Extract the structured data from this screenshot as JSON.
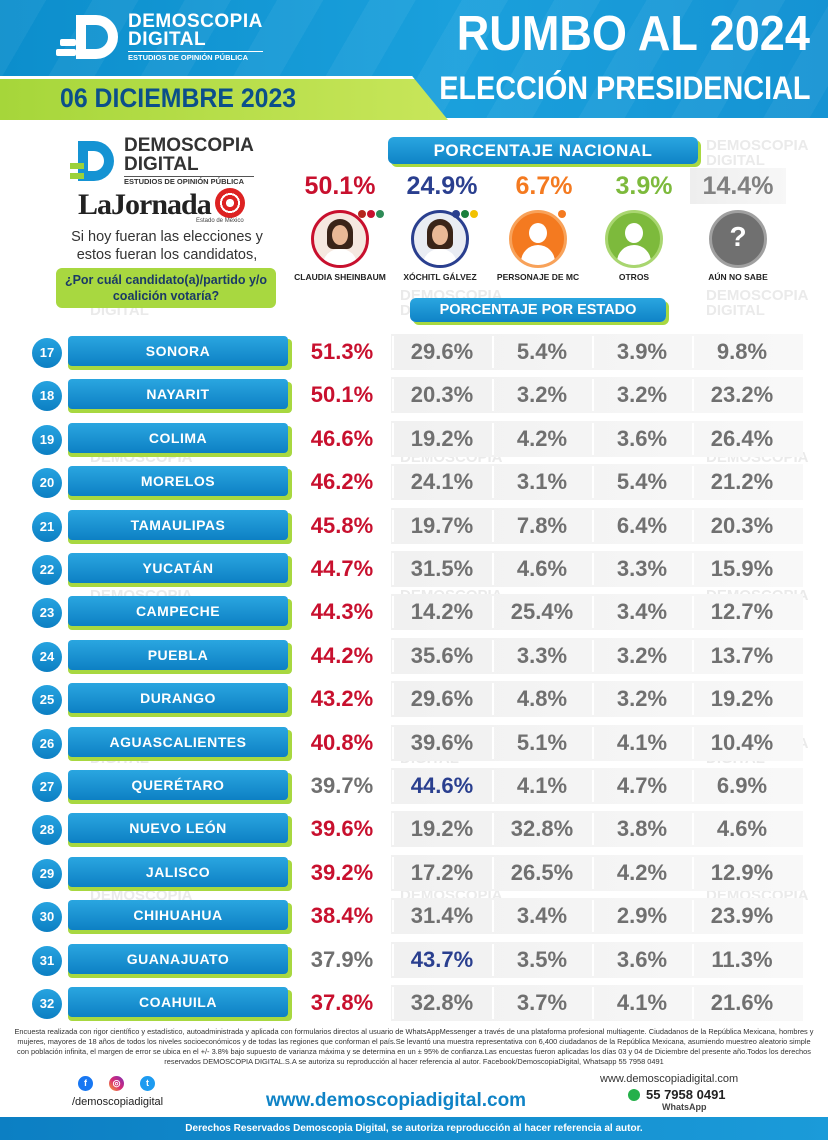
{
  "header": {
    "brand_line1": "DEMOSCOPIA",
    "brand_line2": "DIGITAL",
    "brand_tagline": "ESTUDIOS DE OPINIÓN PÚBLICA",
    "title": "RUMBO AL 2024",
    "subtitle": "ELECCIÓN PRESIDENCIAL",
    "date": "06 DICIEMBRE 2023"
  },
  "watermark_text_1": "DEMOSCOPIA",
  "watermark_text_2": "DIGITAL",
  "left": {
    "brand_line1": "DEMOSCOPIA",
    "brand_line2": "DIGITAL",
    "brand_tagline": "ESTUDIOS DE OPINIÓN PÚBLICA",
    "partner_name": "LaJornada",
    "partner_sub": "Estado de México",
    "question_intro": "Si hoy fueran las elecciones y estos fueran los candidatos,",
    "question": "¿Por cuál candidato(a)/partido y/o coalición votaría?"
  },
  "national": {
    "banner": "PORCENTAJE NACIONAL",
    "values": [
      "50.1%",
      "24.9%",
      "6.7%",
      "3.9%",
      "14.4%"
    ],
    "colors": [
      "#c8102e",
      "#2a3f8f",
      "#f47a20",
      "#7dba3c",
      "#808080"
    ]
  },
  "candidates": [
    {
      "name": "CLAUDIA SHEINBAUM",
      "icon": "candidate-photo"
    },
    {
      "name": "XÓCHITL GÁLVEZ",
      "icon": "candidate-photo"
    },
    {
      "name": "PERSONAJE DE MC",
      "icon": "person-icon"
    },
    {
      "name": "OTROS",
      "icon": "person-icon"
    },
    {
      "name": "AÚN NO SABE",
      "icon": "question-icon",
      "glyph": "?"
    }
  ],
  "state_banner": "PORCENTAJE POR ESTADO",
  "states": [
    {
      "n": "17",
      "name": "SONORA",
      "v": [
        "51.3%",
        "29.6%",
        "5.4%",
        "3.9%",
        "9.8%"
      ],
      "lead": 0
    },
    {
      "n": "18",
      "name": "NAYARIT",
      "v": [
        "50.1%",
        "20.3%",
        "3.2%",
        "3.2%",
        "23.2%"
      ],
      "lead": 0
    },
    {
      "n": "19",
      "name": "COLIMA",
      "v": [
        "46.6%",
        "19.2%",
        "4.2%",
        "3.6%",
        "26.4%"
      ],
      "lead": 0
    },
    {
      "n": "20",
      "name": "MORELOS",
      "v": [
        "46.2%",
        "24.1%",
        "3.1%",
        "5.4%",
        "21.2%"
      ],
      "lead": 0
    },
    {
      "n": "21",
      "name": "TAMAULIPAS",
      "v": [
        "45.8%",
        "19.7%",
        "7.8%",
        "6.4%",
        "20.3%"
      ],
      "lead": 0
    },
    {
      "n": "22",
      "name": "YUCATÁN",
      "v": [
        "44.7%",
        "31.5%",
        "4.6%",
        "3.3%",
        "15.9%"
      ],
      "lead": 0
    },
    {
      "n": "23",
      "name": "CAMPECHE",
      "v": [
        "44.3%",
        "14.2%",
        "25.4%",
        "3.4%",
        "12.7%"
      ],
      "lead": 0
    },
    {
      "n": "24",
      "name": "PUEBLA",
      "v": [
        "44.2%",
        "35.6%",
        "3.3%",
        "3.2%",
        "13.7%"
      ],
      "lead": 0
    },
    {
      "n": "25",
      "name": "DURANGO",
      "v": [
        "43.2%",
        "29.6%",
        "4.8%",
        "3.2%",
        "19.2%"
      ],
      "lead": 0
    },
    {
      "n": "26",
      "name": "AGUASCALIENTES",
      "v": [
        "40.8%",
        "39.6%",
        "5.1%",
        "4.1%",
        "10.4%"
      ],
      "lead": 0
    },
    {
      "n": "27",
      "name": "QUERÉTARO",
      "v": [
        "39.7%",
        "44.6%",
        "4.1%",
        "4.7%",
        "6.9%"
      ],
      "lead": 1
    },
    {
      "n": "28",
      "name": "NUEVO LEÓN",
      "v": [
        "39.6%",
        "19.2%",
        "32.8%",
        "3.8%",
        "4.6%"
      ],
      "lead": 0
    },
    {
      "n": "29",
      "name": "JALISCO",
      "v": [
        "39.2%",
        "17.2%",
        "26.5%",
        "4.2%",
        "12.9%"
      ],
      "lead": 0
    },
    {
      "n": "30",
      "name": "CHIHUAHUA",
      "v": [
        "38.4%",
        "31.4%",
        "3.4%",
        "2.9%",
        "23.9%"
      ],
      "lead": 0
    },
    {
      "n": "31",
      "name": "GUANAJUATO",
      "v": [
        "37.9%",
        "43.7%",
        "3.5%",
        "3.6%",
        "11.3%"
      ],
      "lead": 1
    },
    {
      "n": "32",
      "name": "COAHUILA",
      "v": [
        "37.8%",
        "32.8%",
        "3.7%",
        "4.1%",
        "21.6%"
      ],
      "lead": 0
    }
  ],
  "lead_colors": [
    "#c8102e",
    "#2a3f8f"
  ],
  "default_color": "#707070",
  "footer": {
    "note": "Encuesta realizada con rigor científico y estadístico, autoadministrada y aplicada con formularios directos al usuario de WhatsAppMessenger a través de una plataforma profesional multiagente. Ciudadanos de la República Mexicana, hombres y mujeres, mayores de 18 años de todos los niveles socioeconómicos y de todas las regiones que conforman el país.Se levantó una muestra representativa con 6,400 ciudadanos de la República Mexicana, asumiendo muestreo aleatorio simple con población infinita, el margen de error se ubica en el +/- 3.8% bajo supuesto de varianza máxima y se determina en un ± 95% de confianza.Las encuestas fueron aplicadas los días 03 y 04 de Diciembre del presente año.Todos los derechos reservados DEMOSCOPIA DIGITAL.S.A se autoriza su reproducción al hacer referencia al autor. Facebook/DemoscopiaDigital, Whatsapp 55 7958 0491",
    "handle": "/demoscopiadigital",
    "site": "www.demoscopiadigital.com",
    "site_small": "www.demoscopiadigital.com",
    "whatsapp_number": "55 7958 0491",
    "whatsapp_label": "WhatsApp",
    "rights": "Derechos Reservados Demoscopia Digital, se autoriza reproducción al hacer referencia al autor."
  }
}
